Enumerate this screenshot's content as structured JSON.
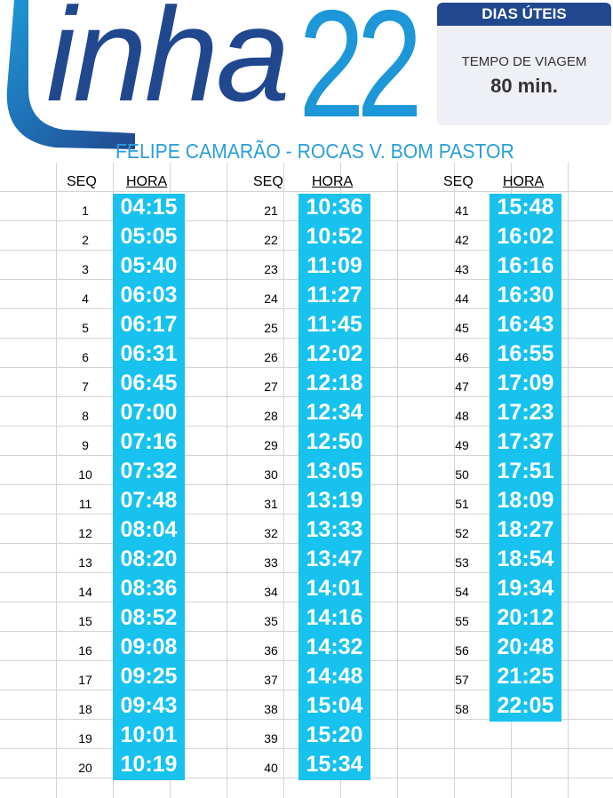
{
  "header": {
    "logo_word": "inha",
    "line_number": "22",
    "route": "FELIPE CAMARÃO - ROCAS V. BOM PASTOR"
  },
  "info": {
    "day_type": "DIAS ÚTEIS",
    "travel_time_label": "TEMPO DE VIAGEM",
    "travel_time_value": "80 min."
  },
  "columns": {
    "seq_label": "SEQ",
    "hora_label": "HORA"
  },
  "colors": {
    "brand_dark": "#21488f",
    "brand_light": "#1d97d7",
    "time_bg": "#17c2ee"
  },
  "schedule": [
    {
      "seq": "1",
      "time": "04:15"
    },
    {
      "seq": "2",
      "time": "05:05"
    },
    {
      "seq": "3",
      "time": "05:40"
    },
    {
      "seq": "4",
      "time": "06:03"
    },
    {
      "seq": "5",
      "time": "06:17"
    },
    {
      "seq": "6",
      "time": "06:31"
    },
    {
      "seq": "7",
      "time": "06:45"
    },
    {
      "seq": "8",
      "time": "07:00"
    },
    {
      "seq": "9",
      "time": "07:16"
    },
    {
      "seq": "10",
      "time": "07:32"
    },
    {
      "seq": "11",
      "time": "07:48"
    },
    {
      "seq": "12",
      "time": "08:04"
    },
    {
      "seq": "13",
      "time": "08:20"
    },
    {
      "seq": "14",
      "time": "08:36"
    },
    {
      "seq": "15",
      "time": "08:52"
    },
    {
      "seq": "16",
      "time": "09:08"
    },
    {
      "seq": "17",
      "time": "09:25"
    },
    {
      "seq": "18",
      "time": "09:43"
    },
    {
      "seq": "19",
      "time": "10:01"
    },
    {
      "seq": "20",
      "time": "10:19"
    },
    {
      "seq": "21",
      "time": "10:36"
    },
    {
      "seq": "22",
      "time": "10:52"
    },
    {
      "seq": "23",
      "time": "11:09"
    },
    {
      "seq": "24",
      "time": "11:27"
    },
    {
      "seq": "25",
      "time": "11:45"
    },
    {
      "seq": "26",
      "time": "12:02"
    },
    {
      "seq": "27",
      "time": "12:18"
    },
    {
      "seq": "28",
      "time": "12:34"
    },
    {
      "seq": "29",
      "time": "12:50"
    },
    {
      "seq": "30",
      "time": "13:05"
    },
    {
      "seq": "31",
      "time": "13:19"
    },
    {
      "seq": "32",
      "time": "13:33"
    },
    {
      "seq": "33",
      "time": "13:47"
    },
    {
      "seq": "34",
      "time": "14:01"
    },
    {
      "seq": "35",
      "time": "14:16"
    },
    {
      "seq": "36",
      "time": "14:32"
    },
    {
      "seq": "37",
      "time": "14:48"
    },
    {
      "seq": "38",
      "time": "15:04"
    },
    {
      "seq": "39",
      "time": "15:20"
    },
    {
      "seq": "40",
      "time": "15:34"
    },
    {
      "seq": "41",
      "time": "15:48"
    },
    {
      "seq": "42",
      "time": "16:02"
    },
    {
      "seq": "43",
      "time": "16:16"
    },
    {
      "seq": "44",
      "time": "16:30"
    },
    {
      "seq": "45",
      "time": "16:43"
    },
    {
      "seq": "46",
      "time": "16:55"
    },
    {
      "seq": "47",
      "time": "17:09"
    },
    {
      "seq": "48",
      "time": "17:23"
    },
    {
      "seq": "49",
      "time": "17:37"
    },
    {
      "seq": "50",
      "time": "17:51"
    },
    {
      "seq": "51",
      "time": "18:09"
    },
    {
      "seq": "52",
      "time": "18:27"
    },
    {
      "seq": "53",
      "time": "18:54"
    },
    {
      "seq": "54",
      "time": "19:34"
    },
    {
      "seq": "55",
      "time": "20:12"
    },
    {
      "seq": "56",
      "time": "20:48"
    },
    {
      "seq": "57",
      "time": "21:25"
    },
    {
      "seq": "58",
      "time": "22:05"
    }
  ]
}
